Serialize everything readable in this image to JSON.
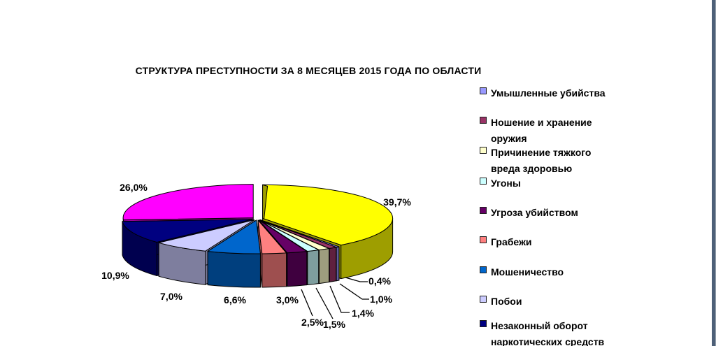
{
  "window": {
    "background": "#ffffff",
    "right_edge_color": "#4e6078"
  },
  "chart_data": {
    "type": "pie",
    "style": "3d-exploded",
    "title": "СТРУКТУРА ПРЕСТУПНОСТИ ЗА 8 МЕСЯЦЕВ 2015 ГОДА ПО ОБЛАСТИ",
    "unit": "%",
    "decimal_separator": ",",
    "legend_position": "right",
    "slices": [
      {
        "label": "Умышленные убийства",
        "value": 0.4,
        "display": "0,4%",
        "color": "#9999FF"
      },
      {
        "label": "Ношение и хранение оружия",
        "value": 1.0,
        "display": "1,0%",
        "color": "#993366"
      },
      {
        "label": "Причинение тяжкого вреда здоровью",
        "value": 1.4,
        "display": "1,4%",
        "color": "#FFFFCC"
      },
      {
        "label": "Угоны",
        "value": 1.5,
        "display": "1,5%",
        "color": "#CCFFFF"
      },
      {
        "label": "Угроза убийством",
        "value": 2.5,
        "display": "2,5%",
        "color": "#660066"
      },
      {
        "label": "Грабежи",
        "value": 3.0,
        "display": "3,0%",
        "color": "#FF8080"
      },
      {
        "label": "Мошеничество",
        "value": 6.6,
        "display": "6,6%",
        "color": "#0066CC"
      },
      {
        "label": "Побои",
        "value": 7.0,
        "display": "7,0%",
        "color": "#CCCCFF"
      },
      {
        "label": "Незаконный оборот наркотических средств",
        "value": 10.9,
        "display": "10,9%",
        "color": "#000080"
      },
      {
        "label": "",
        "value": 26.0,
        "display": "26,0%",
        "color": "#FF00FF"
      },
      {
        "label": "",
        "value": 39.7,
        "display": "39,7%",
        "color": "#FFFF00"
      }
    ],
    "legend": {
      "items": [
        {
          "lines": [
            "Умышленные убийства"
          ],
          "color": "#9999FF"
        },
        {
          "lines": [
            "Ношение и хранение",
            "оружия"
          ],
          "color": "#993366"
        },
        {
          "lines": [
            "Причинение тяжкого",
            "вреда здоровью"
          ],
          "color": "#FFFFCC"
        },
        {
          "lines": [
            "Угоны"
          ],
          "color": "#CCFFFF"
        },
        {
          "lines": [
            "Угроза убийством"
          ],
          "color": "#660066"
        },
        {
          "lines": [
            "Грабежи"
          ],
          "color": "#FF8080"
        },
        {
          "lines": [
            "Мошеничество"
          ],
          "color": "#0066CC"
        },
        {
          "lines": [
            "Побои"
          ],
          "color": "#CCCCFF"
        },
        {
          "lines": [
            "Незаконный оборот",
            "наркотических средств"
          ],
          "color": "#000080"
        }
      ]
    }
  }
}
